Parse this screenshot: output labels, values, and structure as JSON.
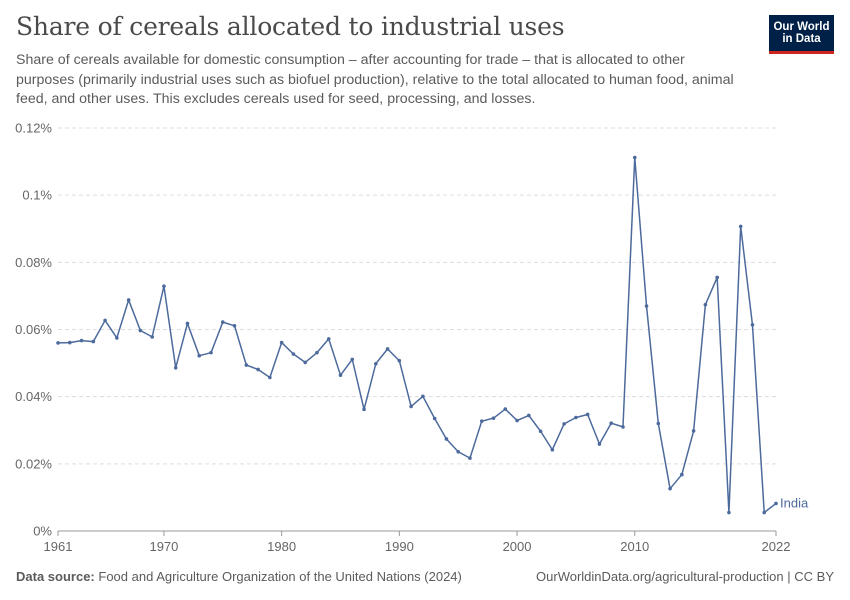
{
  "title": "Share of cereals allocated to industrial uses",
  "subtitle": "Share of cereals available for domestic consumption – after accounting for trade – that is allocated to other purposes (primarily industrial uses such as biofuel production), relative to the total allocated to human food, animal feed, and other uses. This excludes cereals used for seed, processing, and losses.",
  "logo": {
    "line1": "Our World",
    "line2": "in Data"
  },
  "footer": {
    "source_label": "Data source:",
    "source_text": "Food and Agriculture Organization of the United Nations (2024)",
    "url": "OurWorldinData.org/agricultural-production",
    "license": "CC BY"
  },
  "colors": {
    "series": "#4c6a9c",
    "grid": "#dddddd",
    "axis": "#999999",
    "logo_bg": "#002147",
    "logo_accent": "#ce261e"
  },
  "chart_data": {
    "type": "line",
    "title": "Share of cereals allocated to industrial uses",
    "xlabel": "",
    "ylabel": "",
    "xlim": [
      1961,
      2022
    ],
    "ylim": [
      0,
      0.12
    ],
    "y_unit": "%",
    "y_ticks": [
      {
        "value": 0,
        "label": "0%"
      },
      {
        "value": 0.02,
        "label": "0.02%"
      },
      {
        "value": 0.04,
        "label": "0.04%"
      },
      {
        "value": 0.06,
        "label": "0.06%"
      },
      {
        "value": 0.08,
        "label": "0.08%"
      },
      {
        "value": 0.1,
        "label": "0.1%"
      },
      {
        "value": 0.12,
        "label": "0.12%"
      }
    ],
    "x_ticks": [
      1961,
      1970,
      1980,
      1990,
      2000,
      2010,
      2022
    ],
    "grid": "horizontal dashed",
    "series": [
      {
        "name": "India",
        "x": [
          1961,
          1962,
          1963,
          1964,
          1965,
          1966,
          1967,
          1968,
          1969,
          1970,
          1971,
          1972,
          1973,
          1974,
          1975,
          1976,
          1977,
          1978,
          1979,
          1980,
          1981,
          1982,
          1983,
          1984,
          1985,
          1986,
          1987,
          1988,
          1989,
          1990,
          1991,
          1992,
          1993,
          1994,
          1995,
          1996,
          1997,
          1998,
          1999,
          2000,
          2001,
          2002,
          2003,
          2004,
          2005,
          2006,
          2007,
          2008,
          2009,
          2010,
          2011,
          2012,
          2013,
          2014,
          2015,
          2016,
          2017,
          2018,
          2019,
          2020,
          2021,
          2022
        ],
        "values": [
          0.056,
          0.0561,
          0.0567,
          0.0564,
          0.0627,
          0.0575,
          0.0688,
          0.0597,
          0.0578,
          0.0729,
          0.0486,
          0.0618,
          0.0522,
          0.0531,
          0.0622,
          0.0611,
          0.0494,
          0.0481,
          0.0457,
          0.0561,
          0.0527,
          0.0502,
          0.0531,
          0.0572,
          0.0464,
          0.0511,
          0.0362,
          0.0498,
          0.0542,
          0.0507,
          0.0371,
          0.0401,
          0.0335,
          0.0274,
          0.0236,
          0.0217,
          0.0327,
          0.0336,
          0.0363,
          0.0329,
          0.0344,
          0.0297,
          0.0242,
          0.0319,
          0.0338,
          0.0347,
          0.0259,
          0.0321,
          0.031,
          0.1112,
          0.067,
          0.032,
          0.0126,
          0.0168,
          0.0298,
          0.0674,
          0.0755,
          0.0055,
          0.0907,
          0.0614,
          0.0055,
          0.0082
        ]
      }
    ]
  }
}
